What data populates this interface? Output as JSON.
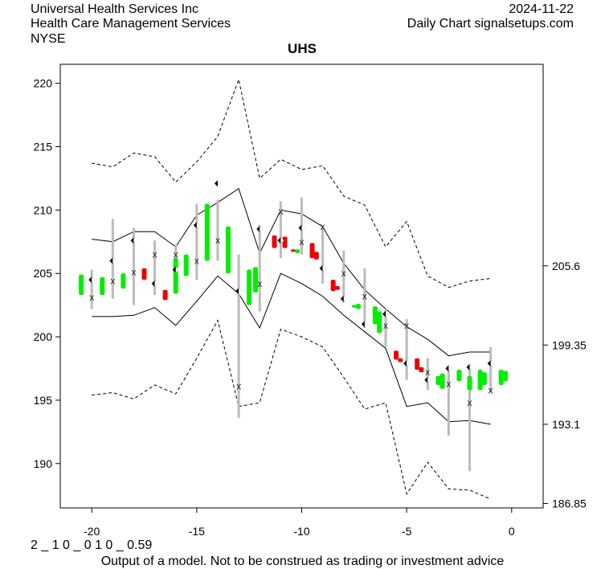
{
  "header": {
    "company": "Universal Health Services Inc",
    "industry": "Health Care Management Services",
    "exchange": "NYSE",
    "date": "2024-11-22",
    "source": "Daily Chart signalsetups.com"
  },
  "footer": {
    "params": "2 _ 1 0 _ 0 1 0 _ 0.59",
    "disclaimer": "Output of a model. Not to be construed as trading or investment advice"
  },
  "colors": {
    "up": "#00ee00",
    "down": "#ee0000",
    "range": "#bbbbbb",
    "band": "#000000"
  },
  "chart_data": {
    "type": "candlestick",
    "title": "UHS",
    "xlim": [
      -21.5,
      1.5
    ],
    "ylim": [
      186.5,
      221.5
    ],
    "x_ticks": [
      -20,
      -15,
      -10,
      -5,
      0
    ],
    "y_ticks_left": [
      190,
      195,
      200,
      205,
      210,
      215,
      220
    ],
    "y_ticks_right": [
      186.85,
      193.1,
      199.35,
      205.6
    ],
    "candles": [
      {
        "x": -20.5,
        "open": 203.3,
        "close": 204.9,
        "dir": "up"
      },
      {
        "x": -19.5,
        "open": 203.3,
        "close": 204.7,
        "dir": "up"
      },
      {
        "x": -18.5,
        "open": 203.8,
        "close": 205.0,
        "dir": "up"
      },
      {
        "x": -17.5,
        "open": 205.4,
        "close": 204.5,
        "dir": "down"
      },
      {
        "x": -16.5,
        "open": 203.7,
        "close": 202.9,
        "dir": "down"
      },
      {
        "x": -16.0,
        "open": 203.4,
        "close": 206.2,
        "dir": "up"
      },
      {
        "x": -15.5,
        "open": 204.8,
        "close": 206.5,
        "dir": "up"
      },
      {
        "x": -14.5,
        "open": 206.0,
        "close": 210.5,
        "dir": "up"
      },
      {
        "x": -13.5,
        "open": 205.0,
        "close": 208.7,
        "dir": "up"
      },
      {
        "x": -12.5,
        "open": 202.5,
        "close": 205.3,
        "dir": "up"
      },
      {
        "x": -12.2,
        "open": 203.5,
        "close": 205.5,
        "dir": "up"
      },
      {
        "x": -11.3,
        "open": 208.0,
        "close": 207.0,
        "dir": "down"
      },
      {
        "x": -10.8,
        "open": 207.9,
        "close": 207.0,
        "dir": "down"
      },
      {
        "x": -10.4,
        "open": 206.9,
        "close": 206.8,
        "dir": "down"
      },
      {
        "x": -10.2,
        "open": 206.6,
        "close": 206.9,
        "dir": "up"
      },
      {
        "x": -9.5,
        "open": 207.4,
        "close": 206.2,
        "dir": "down"
      },
      {
        "x": -9.3,
        "open": 206.7,
        "close": 206.1,
        "dir": "down"
      },
      {
        "x": -8.5,
        "open": 204.5,
        "close": 203.6,
        "dir": "down"
      },
      {
        "x": -8.3,
        "open": 204.0,
        "close": 203.7,
        "dir": "down"
      },
      {
        "x": -7.5,
        "open": 202.3,
        "close": 202.5,
        "dir": "up"
      },
      {
        "x": -7.3,
        "open": 202.2,
        "close": 202.6,
        "dir": "up"
      },
      {
        "x": -6.5,
        "open": 201.0,
        "close": 202.4,
        "dir": "up"
      },
      {
        "x": -6.3,
        "open": 200.3,
        "close": 202.0,
        "dir": "up"
      },
      {
        "x": -5.5,
        "open": 198.9,
        "close": 198.2,
        "dir": "down"
      },
      {
        "x": -5.3,
        "open": 198.3,
        "close": 198.0,
        "dir": "down"
      },
      {
        "x": -4.5,
        "open": 198.3,
        "close": 197.4,
        "dir": "down"
      },
      {
        "x": -4.3,
        "open": 197.6,
        "close": 197.2,
        "dir": "down"
      },
      {
        "x": -3.5,
        "open": 196.2,
        "close": 196.9,
        "dir": "up"
      },
      {
        "x": -3.3,
        "open": 195.9,
        "close": 197.1,
        "dir": "up"
      },
      {
        "x": -2.5,
        "open": 196.5,
        "close": 197.4,
        "dir": "up"
      },
      {
        "x": -2.0,
        "open": 195.8,
        "close": 196.9,
        "dir": "up"
      },
      {
        "x": -1.5,
        "open": 195.8,
        "close": 197.4,
        "dir": "up"
      },
      {
        "x": -1.3,
        "open": 196.2,
        "close": 197.2,
        "dir": "up"
      },
      {
        "x": -0.5,
        "open": 196.2,
        "close": 197.4,
        "dir": "up"
      },
      {
        "x": -0.3,
        "open": 196.5,
        "close": 197.3,
        "dir": "up"
      }
    ],
    "ranges": [
      {
        "x": -20.0,
        "low": 202.2,
        "high": 205.3
      },
      {
        "x": -19.0,
        "low": 203.0,
        "high": 209.3
      },
      {
        "x": -18.0,
        "low": 202.5,
        "high": 208.6
      },
      {
        "x": -17.0,
        "low": 203.3,
        "high": 207.6
      },
      {
        "x": -16.0,
        "low": 204.1,
        "high": 207.3
      },
      {
        "x": -15.0,
        "low": 204.5,
        "high": 210.5
      },
      {
        "x": -14.0,
        "low": 206.0,
        "high": 210.8
      },
      {
        "x": -13.0,
        "low": 193.6,
        "high": 206.5
      },
      {
        "x": -12.0,
        "low": 202.0,
        "high": 208.8
      },
      {
        "x": -11.0,
        "low": 206.2,
        "high": 210.7
      },
      {
        "x": -10.0,
        "low": 206.5,
        "high": 211.0
      },
      {
        "x": -9.0,
        "low": 204.2,
        "high": 208.7
      },
      {
        "x": -8.0,
        "low": 202.7,
        "high": 206.8
      },
      {
        "x": -7.0,
        "low": 200.7,
        "high": 205.4
      },
      {
        "x": -6.0,
        "low": 199.2,
        "high": 202.2
      },
      {
        "x": -5.0,
        "low": 196.6,
        "high": 201.4
      },
      {
        "x": -4.0,
        "low": 195.8,
        "high": 198.3
      },
      {
        "x": -3.0,
        "low": 192.2,
        "high": 197.7
      },
      {
        "x": -2.0,
        "low": 189.4,
        "high": 197.7
      },
      {
        "x": -1.0,
        "low": 195.6,
        "high": 199.2
      }
    ],
    "close_markers": [
      {
        "x": -20.0,
        "y": 203.1
      },
      {
        "x": -19.0,
        "y": 204.4
      },
      {
        "x": -18.0,
        "y": 205.1
      },
      {
        "x": -17.0,
        "y": 206.5
      },
      {
        "x": -16.0,
        "y": 206.5
      },
      {
        "x": -15.0,
        "y": 206.0
      },
      {
        "x": -14.0,
        "y": 207.6
      },
      {
        "x": -13.0,
        "y": 196.1
      },
      {
        "x": -12.0,
        "y": 204.2
      },
      {
        "x": -11.0,
        "y": 209.9
      },
      {
        "x": -10.0,
        "y": 207.5
      },
      {
        "x": -9.0,
        "y": 208.7
      },
      {
        "x": -8.0,
        "y": 205.0
      },
      {
        "x": -7.0,
        "y": 203.2
      },
      {
        "x": -6.0,
        "y": 200.9
      },
      {
        "x": -5.0,
        "y": 200.9
      },
      {
        "x": -4.0,
        "y": 197.2
      },
      {
        "x": -3.0,
        "y": 196.3
      },
      {
        "x": -2.0,
        "y": 194.8
      },
      {
        "x": -1.0,
        "y": 195.8
      }
    ],
    "diamonds": [
      {
        "x": -20.0,
        "y": 204.5
      },
      {
        "x": -19.0,
        "y": 206.0
      },
      {
        "x": -18.0,
        "y": 207.6
      },
      {
        "x": -17.0,
        "y": 204.2
      },
      {
        "x": -16.0,
        "y": 205.3
      },
      {
        "x": -15.0,
        "y": 208.8
      },
      {
        "x": -14.0,
        "y": 212.1
      },
      {
        "x": -13.0,
        "y": 203.6
      },
      {
        "x": -12.0,
        "y": 208.5
      },
      {
        "x": -11.0,
        "y": 207.6
      },
      {
        "x": -10.0,
        "y": 208.6
      },
      {
        "x": -9.0,
        "y": 205.4
      },
      {
        "x": -8.0,
        "y": 203.0
      },
      {
        "x": -7.0,
        "y": 201.0
      },
      {
        "x": -6.0,
        "y": 201.8
      },
      {
        "x": -5.0,
        "y": 197.9
      },
      {
        "x": -4.0,
        "y": 196.6
      },
      {
        "x": -3.0,
        "y": 197.5
      },
      {
        "x": -2.0,
        "y": 197.6
      },
      {
        "x": -1.0,
        "y": 197.9
      }
    ],
    "upper_band": [
      {
        "x": -20,
        "y": 207.7
      },
      {
        "x": -19,
        "y": 207.5
      },
      {
        "x": -18,
        "y": 208.3
      },
      {
        "x": -17,
        "y": 208.3
      },
      {
        "x": -16,
        "y": 207.1
      },
      {
        "x": -15,
        "y": 209.6
      },
      {
        "x": -14,
        "y": 210.6
      },
      {
        "x": -13,
        "y": 211.7
      },
      {
        "x": -12,
        "y": 206.6
      },
      {
        "x": -11,
        "y": 210.0
      },
      {
        "x": -10,
        "y": 209.7
      },
      {
        "x": -9,
        "y": 208.7
      },
      {
        "x": -8,
        "y": 205.8
      },
      {
        "x": -7,
        "y": 203.7
      },
      {
        "x": -6,
        "y": 202.2
      },
      {
        "x": -5,
        "y": 200.8
      },
      {
        "x": -4,
        "y": 199.8
      },
      {
        "x": -3,
        "y": 198.5
      },
      {
        "x": -2,
        "y": 198.8
      },
      {
        "x": -1,
        "y": 198.8
      }
    ],
    "lower_band": [
      {
        "x": -20,
        "y": 201.6
      },
      {
        "x": -19,
        "y": 201.6
      },
      {
        "x": -18,
        "y": 201.7
      },
      {
        "x": -17,
        "y": 202.3
      },
      {
        "x": -16,
        "y": 200.9
      },
      {
        "x": -15,
        "y": 202.8
      },
      {
        "x": -14,
        "y": 204.8
      },
      {
        "x": -13,
        "y": 203.4
      },
      {
        "x": -12,
        "y": 200.7
      },
      {
        "x": -11,
        "y": 205.0
      },
      {
        "x": -10,
        "y": 204.2
      },
      {
        "x": -9,
        "y": 203.2
      },
      {
        "x": -8,
        "y": 201.7
      },
      {
        "x": -7,
        "y": 200.4
      },
      {
        "x": -6,
        "y": 199.1
      },
      {
        "x": -5,
        "y": 194.5
      },
      {
        "x": -4,
        "y": 194.8
      },
      {
        "x": -3,
        "y": 193.3
      },
      {
        "x": -2,
        "y": 193.4
      },
      {
        "x": -1,
        "y": 193.1
      }
    ],
    "upper_outer": [
      {
        "x": -20,
        "y": 213.7
      },
      {
        "x": -19,
        "y": 213.4
      },
      {
        "x": -18,
        "y": 214.5
      },
      {
        "x": -17,
        "y": 214.2
      },
      {
        "x": -16,
        "y": 212.2
      },
      {
        "x": -15,
        "y": 213.8
      },
      {
        "x": -14,
        "y": 215.8
      },
      {
        "x": -13,
        "y": 220.3
      },
      {
        "x": -12,
        "y": 212.5
      },
      {
        "x": -11,
        "y": 214.0
      },
      {
        "x": -10,
        "y": 213.2
      },
      {
        "x": -9,
        "y": 213.5
      },
      {
        "x": -8,
        "y": 211.1
      },
      {
        "x": -7,
        "y": 210.4
      },
      {
        "x": -6,
        "y": 207.1
      },
      {
        "x": -5,
        "y": 209.1
      },
      {
        "x": -4,
        "y": 204.8
      },
      {
        "x": -3,
        "y": 203.9
      },
      {
        "x": -2,
        "y": 204.4
      },
      {
        "x": -1,
        "y": 204.6
      }
    ],
    "lower_outer": [
      {
        "x": -20,
        "y": 195.4
      },
      {
        "x": -19,
        "y": 195.6
      },
      {
        "x": -18,
        "y": 195.1
      },
      {
        "x": -17,
        "y": 196.2
      },
      {
        "x": -16,
        "y": 195.5
      },
      {
        "x": -15,
        "y": 198.3
      },
      {
        "x": -14,
        "y": 201.3
      },
      {
        "x": -13,
        "y": 194.5
      },
      {
        "x": -12,
        "y": 194.8
      },
      {
        "x": -11,
        "y": 200.6
      },
      {
        "x": -10,
        "y": 200.0
      },
      {
        "x": -9,
        "y": 199.2
      },
      {
        "x": -8,
        "y": 196.8
      },
      {
        "x": -7,
        "y": 194.3
      },
      {
        "x": -6,
        "y": 194.8
      },
      {
        "x": -5,
        "y": 187.6
      },
      {
        "x": -4,
        "y": 190.1
      },
      {
        "x": -3,
        "y": 188.0
      },
      {
        "x": -2,
        "y": 187.9
      },
      {
        "x": -1,
        "y": 187.2
      }
    ]
  }
}
